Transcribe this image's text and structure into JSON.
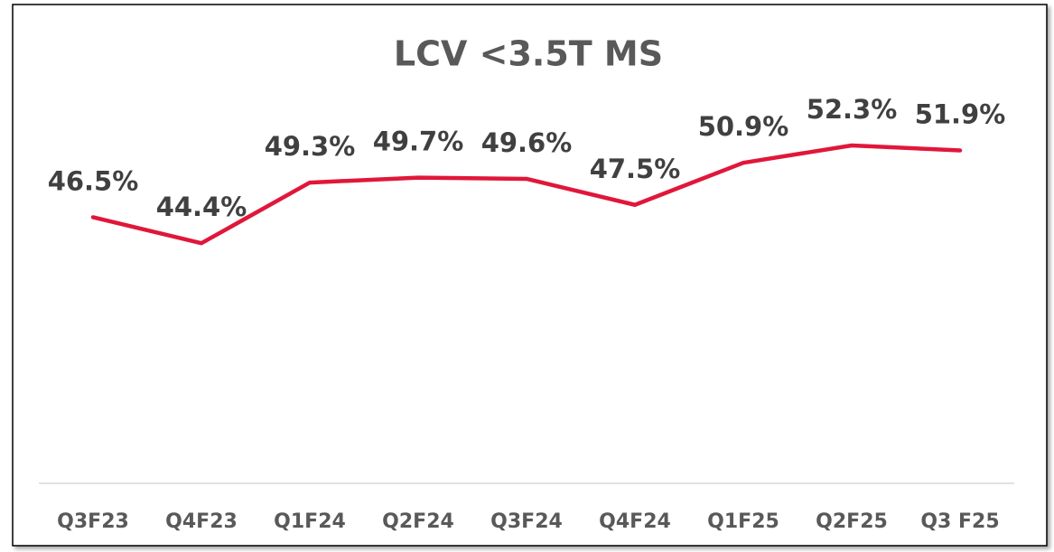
{
  "chart_data": {
    "type": "line",
    "title": "LCV <3.5T MS",
    "categories": [
      "Q3F23",
      "Q4F23",
      "Q1F24",
      "Q2F24",
      "Q3F24",
      "Q4F24",
      "Q1F25",
      "Q2F25",
      "Q3 F25"
    ],
    "values": [
      46.5,
      44.4,
      49.3,
      49.7,
      49.6,
      47.5,
      50.9,
      52.3,
      51.9
    ],
    "value_labels": [
      "46.5%",
      "44.4%",
      "49.3%",
      "49.7%",
      "49.6%",
      "47.5%",
      "50.9%",
      "52.3%",
      "51.9%"
    ],
    "color": "#e0173a",
    "ylim": [
      25,
      55
    ]
  }
}
